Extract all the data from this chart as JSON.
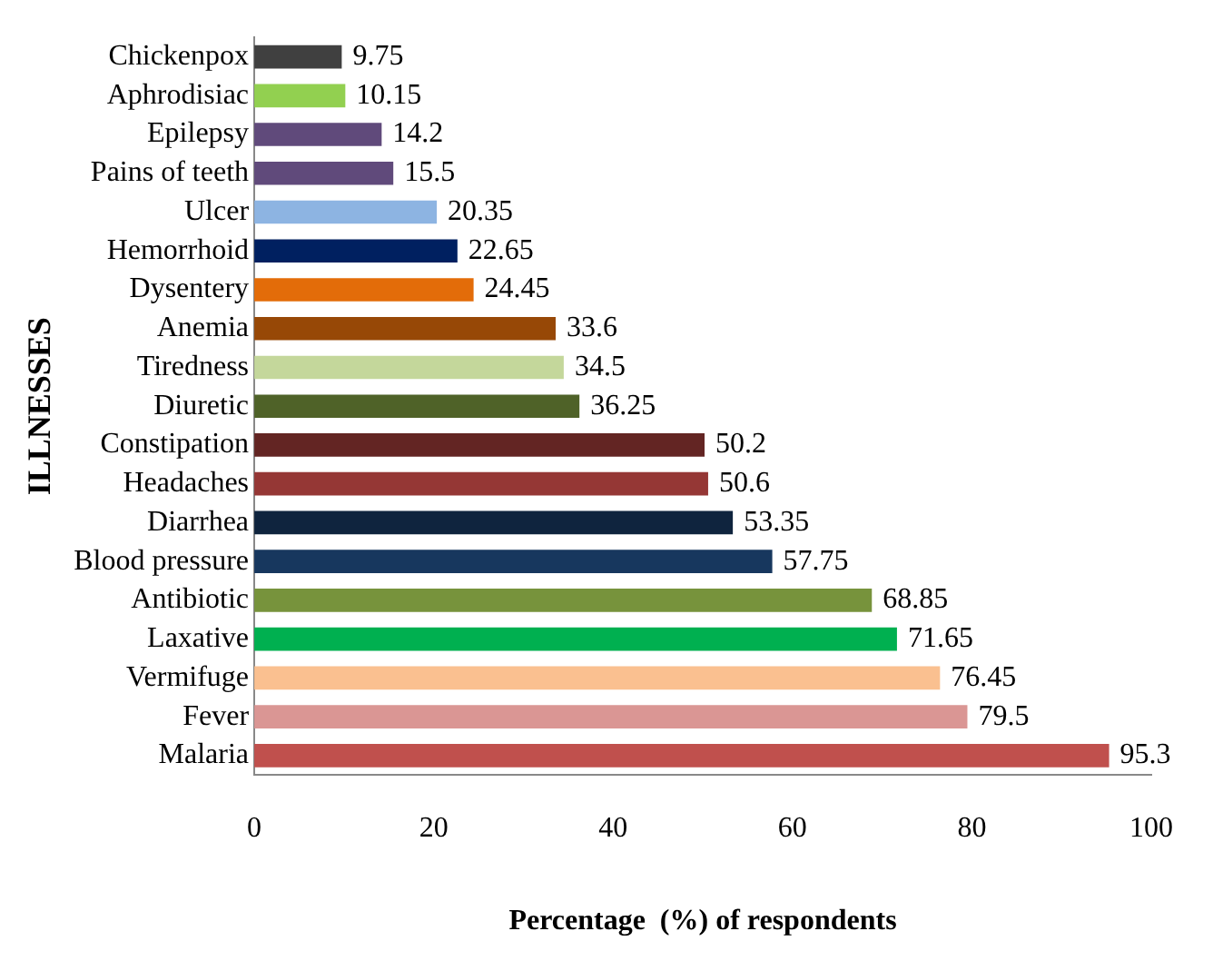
{
  "chart_data": {
    "type": "bar",
    "orientation": "horizontal",
    "xlabel": "Percentage  (%) of respondents",
    "ylabel": "ILLNESSES",
    "categories": [
      "Chickenpox",
      "Aphrodisiac",
      "Epilepsy",
      "Pains of teeth",
      "Ulcer",
      "Hemorrhoid",
      "Dysentery",
      "Anemia",
      "Tiredness",
      "Diuretic",
      "Constipation",
      "Headaches",
      "Diarrhea",
      "Blood pressure",
      "Antibiotic",
      "Laxative",
      "Vermifuge",
      "Fever",
      "Malaria"
    ],
    "values": [
      9.75,
      10.15,
      14.2,
      15.5,
      20.35,
      22.65,
      24.45,
      33.6,
      34.5,
      36.25,
      50.2,
      50.6,
      53.35,
      57.75,
      68.85,
      71.65,
      76.45,
      79.5,
      95.3
    ],
    "colors": [
      "#404040",
      "#92d050",
      "#604a7b",
      "#604a7b",
      "#8db4e2",
      "#002060",
      "#e36c09",
      "#974806",
      "#c4d79b",
      "#4f6228",
      "#632523",
      "#953735",
      "#0f243e",
      "#17375e",
      "#77933c",
      "#00b050",
      "#fac090",
      "#da9694",
      "#c0504d"
    ],
    "xlim": [
      0,
      100
    ],
    "xticks": [
      0,
      20,
      40,
      60,
      80,
      100
    ],
    "grid": false,
    "data_labels": true,
    "legend": false
  }
}
